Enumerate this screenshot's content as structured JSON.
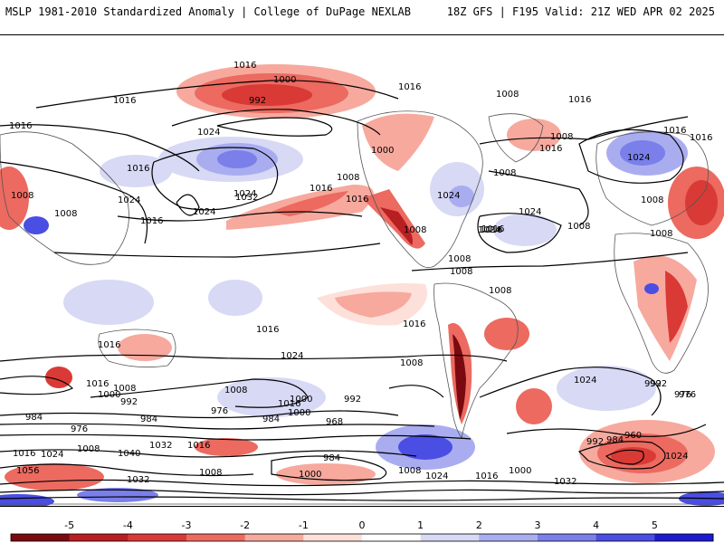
{
  "header": {
    "title_left": "MSLP 1981-2010 Standardized Anomaly | College of DuPage NEXLAB",
    "title_right": "18Z GFS | F195 Valid: 21Z WED APR 02 2025"
  },
  "map": {
    "product": "MSLP standardized anomaly with isobars",
    "contour_labels": [
      "1016",
      "1000",
      "992",
      "1016",
      "1024",
      "1008",
      "1016",
      "1008",
      "1024",
      "1016",
      "1000",
      "1016",
      "1016",
      "1024",
      "1032",
      "1024",
      "1016",
      "1016",
      "1008",
      "1008",
      "1016",
      "1024",
      "1008",
      "1016",
      "1008",
      "1016",
      "1008",
      "1024",
      "1008",
      "1008",
      "1024",
      "1008",
      "1016",
      "1016",
      "1024",
      "1016",
      "1008",
      "1008",
      "1008",
      "1016",
      "1024",
      "1016",
      "1008",
      "1016",
      "1000",
      "992",
      "1008",
      "1016",
      "1000",
      "992",
      "984",
      "976",
      "984",
      "976",
      "968",
      "992",
      "976",
      "984",
      "1000",
      "1008",
      "1016",
      "992",
      "976",
      "984",
      "960",
      "992",
      "1032",
      "1016",
      "1040",
      "1056",
      "1024",
      "1008",
      "1016",
      "1008",
      "1032",
      "1000",
      "1008",
      "1024",
      "1016",
      "1000",
      "1032",
      "1024",
      "1024",
      "984"
    ],
    "shading": "red = negative anomaly, blue = positive anomaly"
  },
  "colorbar": {
    "ticks": [
      "-5",
      "-4",
      "-3",
      "-2",
      "-1",
      "0",
      "1",
      "2",
      "3",
      "4",
      "5"
    ],
    "colors": [
      "#7a0a10",
      "#b81f22",
      "#d93a35",
      "#ec6a60",
      "#f7a99e",
      "#fde0da",
      "#ffffff",
      "#d7d9f5",
      "#a9adf0",
      "#7a7fea",
      "#4a4ee3",
      "#1c1bd0"
    ]
  }
}
